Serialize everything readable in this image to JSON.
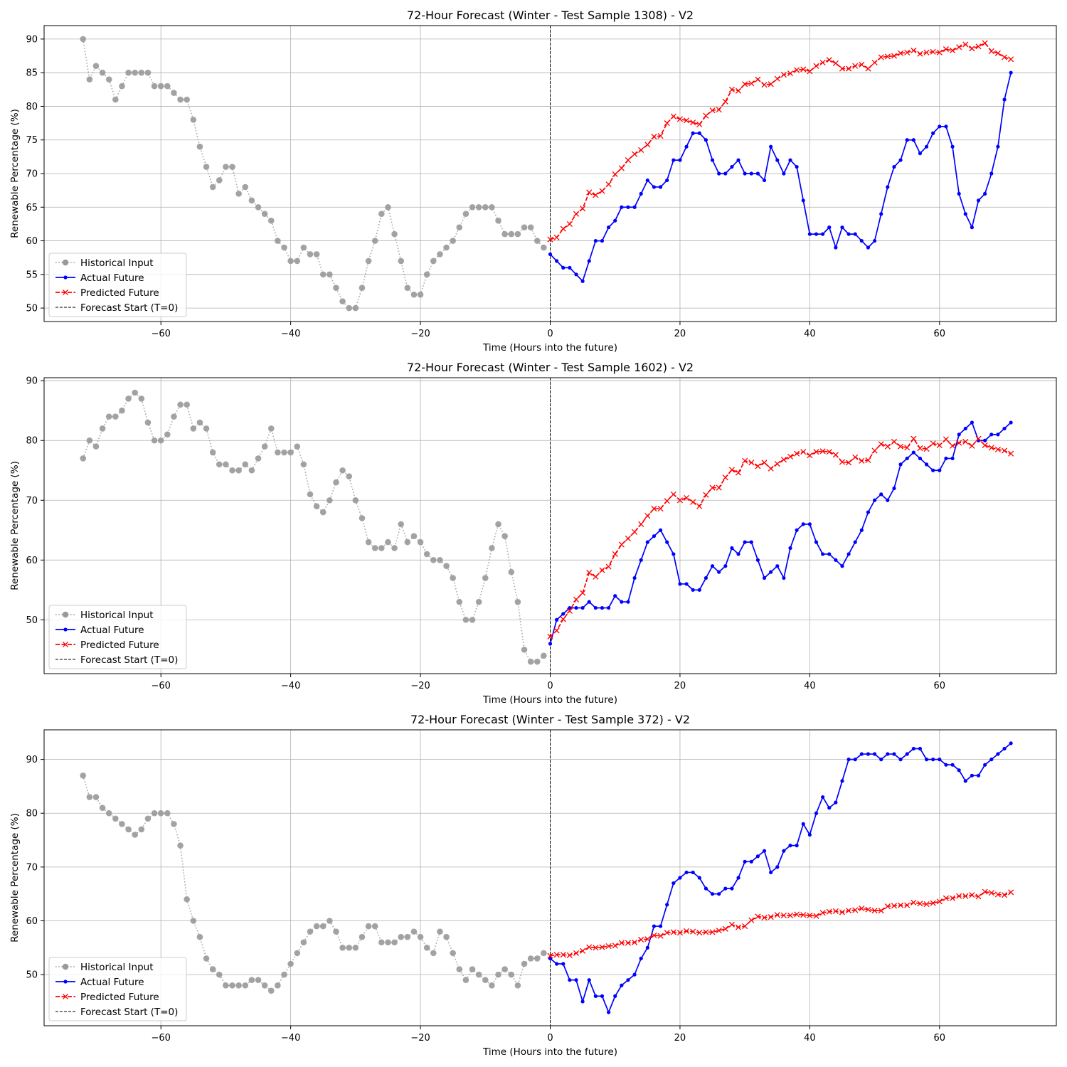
{
  "figure": {
    "background": "#ffffff",
    "grid_color": "#b0b0b0",
    "colors": {
      "historical": "#999999",
      "actual": "#0000ff",
      "predicted": "#ff0000",
      "forecast_start": "#000000"
    }
  },
  "chart_data": [
    {
      "type": "line",
      "title": "72-Hour Forecast (Winter - Test Sample 1308) - V2",
      "xlabel": "Time (Hours into the future)",
      "ylabel": "Renewable Percentage (%)",
      "xlim": [
        -78,
        78
      ],
      "ylim": [
        48,
        92
      ],
      "xticks": [
        -60,
        -40,
        -20,
        0,
        20,
        40,
        60
      ],
      "xtick_labels": [
        "−60",
        "−40",
        "−20",
        "0",
        "20",
        "40",
        "60"
      ],
      "yticks": [
        50,
        55,
        60,
        65,
        70,
        75,
        80,
        85,
        90
      ],
      "ytick_labels": [
        "50",
        "55",
        "60",
        "65",
        "70",
        "75",
        "80",
        "85",
        "90"
      ],
      "grid": true,
      "legend_position": "lower-left",
      "forecast_start_x": 0,
      "series": [
        {
          "name": "Historical Input",
          "style": "dotted-circle",
          "x_start": -72,
          "values": [
            90,
            84,
            86,
            85,
            84,
            81,
            83,
            85,
            85,
            85,
            85,
            83,
            83,
            83,
            82,
            81,
            81,
            78,
            74,
            71,
            68,
            69,
            71,
            71,
            67,
            68,
            66,
            65,
            64,
            63,
            60,
            59,
            57,
            57,
            59,
            58,
            58,
            55,
            55,
            53,
            51,
            50,
            50,
            53,
            57,
            60,
            64,
            65,
            61,
            57,
            53,
            52,
            52,
            55,
            57,
            58,
            59,
            60,
            62,
            64,
            65,
            65,
            65,
            65,
            63,
            61,
            61,
            61,
            62,
            62,
            60,
            59
          ]
        },
        {
          "name": "Actual Future",
          "style": "solid-dot",
          "x_start": 0,
          "values": [
            58,
            57,
            56,
            56,
            55,
            54,
            57,
            60,
            60,
            62,
            63,
            65,
            65,
            65,
            67,
            69,
            68,
            68,
            69,
            72,
            72,
            74,
            76,
            76,
            75,
            72,
            70,
            70,
            71,
            72,
            70,
            70,
            70,
            69,
            74,
            72,
            70,
            72,
            71,
            66,
            61,
            61,
            61,
            62,
            59,
            62,
            61,
            61,
            60,
            59,
            60,
            64,
            68,
            71,
            72,
            75,
            75,
            73,
            74,
            76,
            77,
            77,
            74,
            67,
            64,
            62,
            66,
            67,
            70,
            74,
            81,
            85
          ]
        },
        {
          "name": "Predicted Future",
          "style": "dashed-x",
          "x_start": 0,
          "values": [
            60.2,
            60.5,
            61.8,
            62.5,
            64.0,
            64.8,
            67.2,
            66.8,
            67.4,
            68.4,
            69.9,
            70.8,
            72.0,
            72.9,
            73.5,
            74.3,
            75.5,
            75.6,
            77.5,
            78.5,
            78.1,
            77.9,
            77.6,
            77.3,
            78.6,
            79.4,
            79.5,
            80.7,
            82.5,
            82.3,
            83.3,
            83.4,
            84.0,
            83.2,
            83.3,
            84.1,
            84.7,
            84.9,
            85.4,
            85.5,
            85.2,
            86.0,
            86.5,
            86.9,
            86.4,
            85.6,
            85.6,
            86.0,
            86.2,
            85.6,
            86.5,
            87.3,
            87.4,
            87.5,
            87.9,
            88.0,
            88.3,
            87.8,
            88.0,
            88.1,
            88.0,
            88.5,
            88.3,
            88.8,
            89.2,
            88.6,
            88.9,
            89.4,
            88.2,
            87.9,
            87.3,
            87.0
          ]
        }
      ]
    },
    {
      "type": "line",
      "title": "72-Hour Forecast (Winter - Test Sample 1602) - V2",
      "xlabel": "Time (Hours into the future)",
      "ylabel": "Renewable Percentage (%)",
      "xlim": [
        -78,
        78
      ],
      "ylim": [
        41,
        90.5
      ],
      "xticks": [
        -60,
        -40,
        -20,
        0,
        20,
        40,
        60
      ],
      "xtick_labels": [
        "−60",
        "−40",
        "−20",
        "0",
        "20",
        "40",
        "60"
      ],
      "yticks": [
        50,
        60,
        70,
        80,
        90
      ],
      "ytick_labels": [
        "50",
        "60",
        "70",
        "80",
        "90"
      ],
      "grid": true,
      "legend_position": "lower-left",
      "forecast_start_x": 0,
      "series": [
        {
          "name": "Historical Input",
          "style": "dotted-circle",
          "x_start": -72,
          "values": [
            77,
            80,
            79,
            82,
            84,
            84,
            85,
            87,
            88,
            87,
            83,
            80,
            80,
            81,
            84,
            86,
            86,
            82,
            83,
            82,
            78,
            76,
            76,
            75,
            75,
            76,
            75,
            77,
            79,
            82,
            78,
            78,
            78,
            79,
            76,
            71,
            69,
            68,
            70,
            73,
            75,
            74,
            70,
            67,
            63,
            62,
            62,
            63,
            62,
            66,
            63,
            64,
            63,
            61,
            60,
            60,
            59,
            57,
            53,
            50,
            50,
            53,
            57,
            62,
            66,
            64,
            58,
            53,
            45,
            43,
            43,
            44
          ]
        },
        {
          "name": "Actual Future",
          "style": "solid-dot",
          "x_start": 0,
          "values": [
            46,
            50,
            51,
            52,
            52,
            52,
            53,
            52,
            52,
            52,
            54,
            53,
            53,
            57,
            60,
            63,
            64,
            65,
            63,
            61,
            56,
            56,
            55,
            55,
            57,
            59,
            58,
            59,
            62,
            61,
            63,
            63,
            60,
            57,
            58,
            59,
            57,
            62,
            65,
            66,
            66,
            63,
            61,
            61,
            60,
            59,
            61,
            63,
            65,
            68,
            70,
            71,
            70,
            72,
            76,
            77,
            78,
            77,
            76,
            75,
            75,
            77,
            77,
            81,
            82,
            83,
            80,
            80,
            81,
            81,
            82,
            83
          ]
        },
        {
          "name": "Predicted Future",
          "style": "dashed-x",
          "x_start": 0,
          "values": [
            47.2,
            48.2,
            50.1,
            51.5,
            53.4,
            54.5,
            57.9,
            57.2,
            58.3,
            58.9,
            61.0,
            62.6,
            63.6,
            64.7,
            66.0,
            67.4,
            68.6,
            68.6,
            69.9,
            71.0,
            70.0,
            70.4,
            69.7,
            69.0,
            70.9,
            72.1,
            72.1,
            73.8,
            75.1,
            74.6,
            76.6,
            76.3,
            75.7,
            76.3,
            75.3,
            76.1,
            76.8,
            77.3,
            77.8,
            78.1,
            77.5,
            78.1,
            78.2,
            78.1,
            77.6,
            76.4,
            76.3,
            77.2,
            76.6,
            76.7,
            78.3,
            79.4,
            79.0,
            79.8,
            79.0,
            78.8,
            80.3,
            78.7,
            78.6,
            79.5,
            79.2,
            80.2,
            79.1,
            79.6,
            79.8,
            79.1,
            80.3,
            79.2,
            78.8,
            78.5,
            78.3,
            77.8
          ]
        }
      ]
    },
    {
      "type": "line",
      "title": "72-Hour Forecast (Winter - Test Sample 372) - V2",
      "xlabel": "Time (Hours into the future)",
      "ylabel": "Renewable Percentage (%)",
      "xlim": [
        -78,
        78
      ],
      "ylim": [
        40.5,
        95.5
      ],
      "xticks": [
        -60,
        -40,
        -20,
        0,
        20,
        40,
        60
      ],
      "xtick_labels": [
        "−60",
        "−40",
        "−20",
        "0",
        "20",
        "40",
        "60"
      ],
      "yticks": [
        50,
        60,
        70,
        80,
        90
      ],
      "ytick_labels": [
        "50",
        "60",
        "70",
        "80",
        "90"
      ],
      "grid": true,
      "legend_position": "lower-left",
      "forecast_start_x": 0,
      "series": [
        {
          "name": "Historical Input",
          "style": "dotted-circle",
          "x_start": -72,
          "values": [
            87,
            83,
            83,
            81,
            80,
            79,
            78,
            77,
            76,
            77,
            79,
            80,
            80,
            80,
            78,
            74,
            64,
            60,
            57,
            53,
            51,
            50,
            48,
            48,
            48,
            48,
            49,
            49,
            48,
            47,
            48,
            50,
            52,
            54,
            56,
            58,
            59,
            59,
            60,
            58,
            55,
            55,
            55,
            57,
            59,
            59,
            56,
            56,
            56,
            57,
            57,
            58,
            57,
            55,
            54,
            58,
            57,
            54,
            51,
            49,
            51,
            50,
            49,
            48,
            50,
            51,
            50,
            48,
            52,
            53,
            53,
            54
          ]
        },
        {
          "name": "Actual Future",
          "style": "solid-dot",
          "x_start": 0,
          "values": [
            53,
            52,
            52,
            49,
            49,
            45,
            49,
            46,
            46,
            43,
            46,
            48,
            49,
            50,
            53,
            55,
            59,
            59,
            63,
            67,
            68,
            69,
            69,
            68,
            66,
            65,
            65,
            66,
            66,
            68,
            71,
            71,
            72,
            73,
            69,
            70,
            73,
            74,
            74,
            78,
            76,
            80,
            83,
            81,
            82,
            86,
            90,
            90,
            91,
            91,
            91,
            90,
            91,
            91,
            90,
            91,
            92,
            92,
            90,
            90,
            90,
            89,
            89,
            88,
            86,
            87,
            87,
            89,
            90,
            91,
            92,
            93
          ]
        },
        {
          "name": "Predicted Future",
          "style": "dashed-x",
          "x_start": 0,
          "values": [
            53.5,
            53.7,
            53.7,
            53.6,
            54.0,
            54.4,
            55.1,
            55.0,
            55.1,
            55.3,
            55.4,
            55.9,
            55.9,
            56.0,
            56.5,
            56.6,
            57.3,
            57.2,
            57.8,
            57.9,
            57.8,
            58.1,
            58.0,
            57.8,
            57.9,
            57.9,
            58.2,
            58.5,
            59.3,
            58.8,
            59.0,
            60.1,
            60.8,
            60.6,
            60.7,
            61.1,
            61.0,
            61.0,
            61.2,
            61.1,
            61.0,
            60.9,
            61.5,
            61.7,
            61.8,
            61.6,
            61.9,
            62.0,
            62.3,
            62.1,
            61.9,
            61.9,
            62.7,
            62.8,
            62.9,
            62.9,
            63.4,
            63.2,
            63.1,
            63.3,
            63.6,
            64.2,
            64.2,
            64.6,
            64.6,
            64.8,
            64.5,
            65.4,
            65.2,
            64.9,
            64.8,
            65.3
          ]
        }
      ]
    }
  ],
  "legend": {
    "historical": "Historical Input",
    "actual": "Actual Future",
    "predicted": "Predicted Future",
    "forecast_start": "Forecast Start (T=0)"
  }
}
